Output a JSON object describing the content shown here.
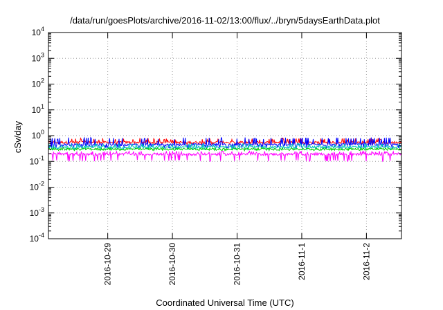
{
  "chart_data": {
    "type": "line",
    "title": "/data/run/goesPlots/archive/2016-11-02/13:00/flux/../bryn/5daysEarthData.plot",
    "xlabel": "Coordinated Universal Time (UTC)",
    "ylabel": "cSv/day",
    "y_scale": "log",
    "ylim": [
      0.0001,
      10000
    ],
    "y_ticks": [
      {
        "exp": "4",
        "value": 10000
      },
      {
        "exp": "3",
        "value": 1000
      },
      {
        "exp": "2",
        "value": 100
      },
      {
        "exp": "1",
        "value": 10
      },
      {
        "exp": "0",
        "value": 1
      },
      {
        "exp": "-1",
        "value": 0.1
      },
      {
        "exp": "-2",
        "value": 0.01
      },
      {
        "exp": "-3",
        "value": 0.001
      },
      {
        "exp": "-4",
        "value": 0.0001
      }
    ],
    "xlim": [
      "2016-10-28 02:00",
      "2016-11-02 13:00"
    ],
    "x_ticks": [
      "2016-10-29",
      "2016-10-30",
      "2016-10-31",
      "2016-11-1",
      "2016-11-2"
    ],
    "grid": true,
    "series": [
      {
        "color": "#ff0000",
        "baseline": 0.55,
        "low": 0.45,
        "high": 0.8
      },
      {
        "color": "#0000ff",
        "baseline": 0.45,
        "low": 0.32,
        "high": 0.85
      },
      {
        "color": "#00c0c0",
        "baseline": 0.36,
        "low": 0.28,
        "high": 0.5
      },
      {
        "color": "#00cc00",
        "baseline": 0.3,
        "low": 0.26,
        "high": 0.34
      },
      {
        "color": "#ff00ff",
        "baseline": 0.19,
        "low": 0.1,
        "high": 0.25
      }
    ]
  }
}
